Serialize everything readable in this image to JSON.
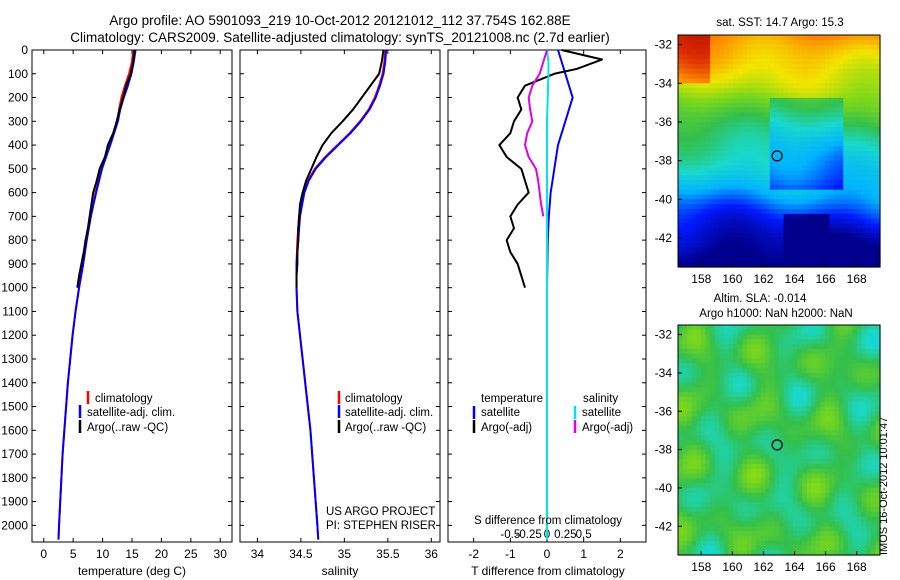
{
  "header": {
    "line1": "Argo profile: AO 5901093_219 10-Oct-2012 20121012_112 37.754S 162.88E",
    "line2": "Climatology: CARS2009. Satellite-adjusted climatology: synTS_20121008.nc (2.7d earlier)"
  },
  "colors": {
    "climatology": "#ff0000",
    "satellite": "#0000ff",
    "argo": "#000000",
    "sal_satellite": "#00e5e5",
    "sal_argo": "#e000e0"
  },
  "chart_data": [
    {
      "type": "line",
      "xlabel": "temperature (deg C)",
      "ylabel": "",
      "xlim": [
        -2,
        32
      ],
      "ylim": [
        2070,
        0
      ],
      "xticks": [
        "0",
        "5",
        "10",
        "15",
        "20",
        "25",
        "30"
      ],
      "yticks": [
        "0",
        "100",
        "200",
        "300",
        "400",
        "500",
        "600",
        "700",
        "800",
        "900",
        "1000",
        "1100",
        "1200",
        "1300",
        "1400",
        "1500",
        "1600",
        "1700",
        "1800",
        "1900",
        "2000"
      ],
      "legend": [
        "climatology",
        "satellite-adj. clim.",
        "Argo(..raw -QC)"
      ],
      "legend_position": "center-right",
      "series": [
        {
          "name": "climatology",
          "color": "#ff0000",
          "depth": [
            0,
            50,
            100,
            150,
            200,
            250,
            300,
            400,
            500,
            600,
            700,
            800,
            900,
            1000,
            1100,
            1200,
            1300,
            1400,
            1500,
            1600,
            1700,
            1800,
            1900,
            2000,
            2060
          ],
          "values": [
            15.2,
            15.0,
            14.5,
            13.8,
            13.2,
            12.8,
            12.5,
            11.2,
            9.8,
            8.8,
            8.0,
            7.3,
            6.7,
            6.0,
            5.4,
            4.9,
            4.5,
            4.1,
            3.8,
            3.5,
            3.2,
            3.0,
            2.8,
            2.6,
            2.5
          ]
        },
        {
          "name": "satellite-adj. clim.",
          "color": "#0000ff",
          "depth": [
            0,
            50,
            100,
            150,
            200,
            250,
            300,
            400,
            500,
            600,
            700,
            800,
            900,
            1000,
            1100,
            1200,
            1300,
            1400,
            1500,
            1600,
            1700,
            1800,
            1900,
            2000,
            2060
          ],
          "values": [
            15.6,
            15.3,
            14.9,
            14.3,
            13.6,
            13.0,
            12.6,
            11.3,
            9.9,
            8.9,
            8.0,
            7.3,
            6.7,
            6.0,
            5.4,
            4.9,
            4.5,
            4.1,
            3.8,
            3.5,
            3.2,
            3.0,
            2.8,
            2.6,
            2.5
          ]
        },
        {
          "name": "Argo(..raw -QC)",
          "color": "#000000",
          "depth": [
            0,
            50,
            100,
            150,
            200,
            250,
            300,
            350,
            400,
            450,
            500,
            550,
            600,
            650,
            700,
            750,
            800,
            850,
            900,
            950,
            1000
          ],
          "values": [
            15.4,
            15.2,
            14.8,
            14.0,
            13.5,
            12.9,
            12.4,
            11.8,
            10.9,
            10.4,
            9.5,
            9.0,
            8.4,
            8.1,
            7.8,
            7.5,
            7.1,
            6.8,
            6.4,
            6.0,
            5.7
          ]
        }
      ]
    },
    {
      "type": "line",
      "xlabel": "salinity",
      "ylabel": "",
      "xlim": [
        33.8,
        36.1
      ],
      "ylim": [
        2070,
        0
      ],
      "xticks": [
        "34",
        "34.5",
        "35",
        "35.5",
        "36"
      ],
      "legend": [
        "climatology",
        "satellite-adj. clim.",
        "Argo(..raw -QC)"
      ],
      "legend_position": "center-right",
      "annotation": [
        "US ARGO PROJECT",
        "PI: STEPHEN RISER"
      ],
      "series": [
        {
          "name": "climatology",
          "color": "#ff0000",
          "depth": [
            0,
            50,
            100,
            150,
            200,
            250,
            300,
            350,
            400,
            450,
            500,
            550,
            600,
            700,
            800,
            900,
            1000,
            1100,
            1200,
            1300,
            1400,
            1500,
            1600,
            1700,
            1800,
            1900,
            2000,
            2060
          ],
          "values": [
            35.47,
            35.46,
            35.44,
            35.4,
            35.35,
            35.28,
            35.18,
            35.06,
            34.92,
            34.78,
            34.66,
            34.58,
            34.53,
            34.48,
            34.46,
            34.45,
            34.45,
            34.46,
            34.49,
            34.52,
            34.55,
            34.58,
            34.61,
            34.63,
            34.65,
            34.67,
            34.69,
            34.7
          ]
        },
        {
          "name": "satellite-adj. clim.",
          "color": "#0000ff",
          "depth": [
            0,
            50,
            100,
            150,
            200,
            250,
            300,
            350,
            400,
            450,
            500,
            550,
            600,
            700,
            800,
            900,
            1000,
            1100,
            1200,
            1300,
            1400,
            1500,
            1600,
            1700,
            1800,
            1900,
            2000,
            2060
          ],
          "values": [
            35.48,
            35.47,
            35.45,
            35.41,
            35.36,
            35.29,
            35.19,
            35.07,
            34.93,
            34.79,
            34.67,
            34.59,
            34.54,
            34.49,
            34.47,
            34.45,
            34.45,
            34.46,
            34.49,
            34.52,
            34.55,
            34.58,
            34.61,
            34.63,
            34.65,
            34.67,
            34.69,
            34.7
          ]
        },
        {
          "name": "Argo(..raw -QC)",
          "color": "#000000",
          "depth": [
            0,
            50,
            100,
            150,
            200,
            250,
            300,
            350,
            400,
            450,
            500,
            550,
            600,
            650,
            700,
            750,
            800,
            850,
            900,
            950,
            1000
          ],
          "values": [
            35.45,
            35.43,
            35.4,
            35.3,
            35.2,
            35.1,
            34.98,
            34.85,
            34.75,
            34.68,
            34.62,
            34.56,
            34.52,
            34.49,
            34.48,
            34.47,
            34.47,
            34.46,
            34.46,
            34.45,
            34.45
          ]
        }
      ]
    },
    {
      "type": "line",
      "xlabel": "T difference from climatology",
      "xlabel_top": "S difference from climatology",
      "xlim": [
        -2.7,
        2.7
      ],
      "xticks": [
        "-2",
        "-1",
        "0",
        "1",
        "2"
      ],
      "xticks_top": [
        "-0.5",
        "-0.25",
        "0",
        "0.25",
        "0.5"
      ],
      "ylim": [
        2070,
        0
      ],
      "legend_groups": [
        {
          "heading": "temperature",
          "entries": [
            "satellite",
            "Argo(-adj)"
          ]
        },
        {
          "heading": "salinity",
          "entries": [
            "satellite",
            "Argo(-adj)"
          ]
        }
      ],
      "series": [
        {
          "name": "temperature satellite",
          "color": "#0000ff",
          "depth": [
            0,
            50,
            100,
            150,
            200,
            250,
            300,
            400,
            500,
            600,
            700,
            800,
            1000,
            1500,
            2060
          ],
          "values": [
            0.3,
            0.4,
            0.5,
            0.6,
            0.7,
            0.6,
            0.5,
            0.3,
            0.2,
            0.1,
            0.05,
            0.02,
            0.0,
            0.0,
            0.0
          ]
        },
        {
          "name": "temperature Argo(-adj)",
          "color": "#000000",
          "depth": [
            0,
            40,
            80,
            100,
            150,
            200,
            250,
            300,
            350,
            400,
            450,
            500,
            550,
            600,
            650,
            700,
            750,
            800,
            850,
            900,
            950,
            1000
          ],
          "values": [
            0.4,
            1.5,
            0.8,
            0.2,
            -0.6,
            -0.8,
            -0.7,
            -0.9,
            -1.0,
            -1.3,
            -1.1,
            -0.7,
            -0.6,
            -0.5,
            -0.8,
            -1.0,
            -0.9,
            -1.1,
            -1.0,
            -0.8,
            -0.7,
            -0.6
          ]
        },
        {
          "name": "salinity satellite",
          "color": "#00e5e5",
          "depth": [
            0,
            50,
            100,
            200,
            300,
            400,
            600,
            800,
            1000,
            1500,
            2060
          ],
          "values": [
            0.0,
            0.02,
            0.02,
            0.01,
            0.0,
            0.0,
            0.0,
            0.0,
            0.0,
            0.0,
            0.0
          ]
        },
        {
          "name": "salinity Argo(-adj)",
          "color": "#e000e0",
          "depth": [
            0,
            50,
            100,
            150,
            200,
            250,
            300,
            350,
            400,
            450,
            500,
            550,
            600,
            650,
            700
          ],
          "values": [
            0.0,
            -0.05,
            -0.1,
            -0.2,
            -0.25,
            -0.23,
            -0.2,
            -0.27,
            -0.3,
            -0.25,
            -0.15,
            -0.12,
            -0.1,
            -0.08,
            -0.05
          ]
        }
      ]
    },
    {
      "type": "heatmap",
      "title": "sat. SST: 14.7 Argo: 15.3",
      "xticks": [
        "158",
        "160",
        "162",
        "164",
        "166",
        "168"
      ],
      "yticks": [
        "-32",
        "-34",
        "-36",
        "-38",
        "-40",
        "-42"
      ],
      "xlim": [
        156.5,
        169.5
      ],
      "ylim": [
        -43.5,
        -31.5
      ],
      "marker": {
        "lon": 162.88,
        "lat": -37.754
      }
    },
    {
      "type": "heatmap",
      "title": "Altim. SLA: -0.014",
      "subtitle": "Argo h1000: NaN h2000: NaN",
      "xticks": [
        "158",
        "160",
        "162",
        "164",
        "166",
        "168"
      ],
      "yticks": [
        "-32",
        "-34",
        "-36",
        "-38",
        "-40",
        "-42"
      ],
      "xlim": [
        156.5,
        169.5
      ],
      "ylim": [
        -43.5,
        -31.5
      ],
      "marker": {
        "lon": 162.88,
        "lat": -37.754
      }
    }
  ],
  "stamp": "IMOS 16-Oct-2012 10:01:47"
}
